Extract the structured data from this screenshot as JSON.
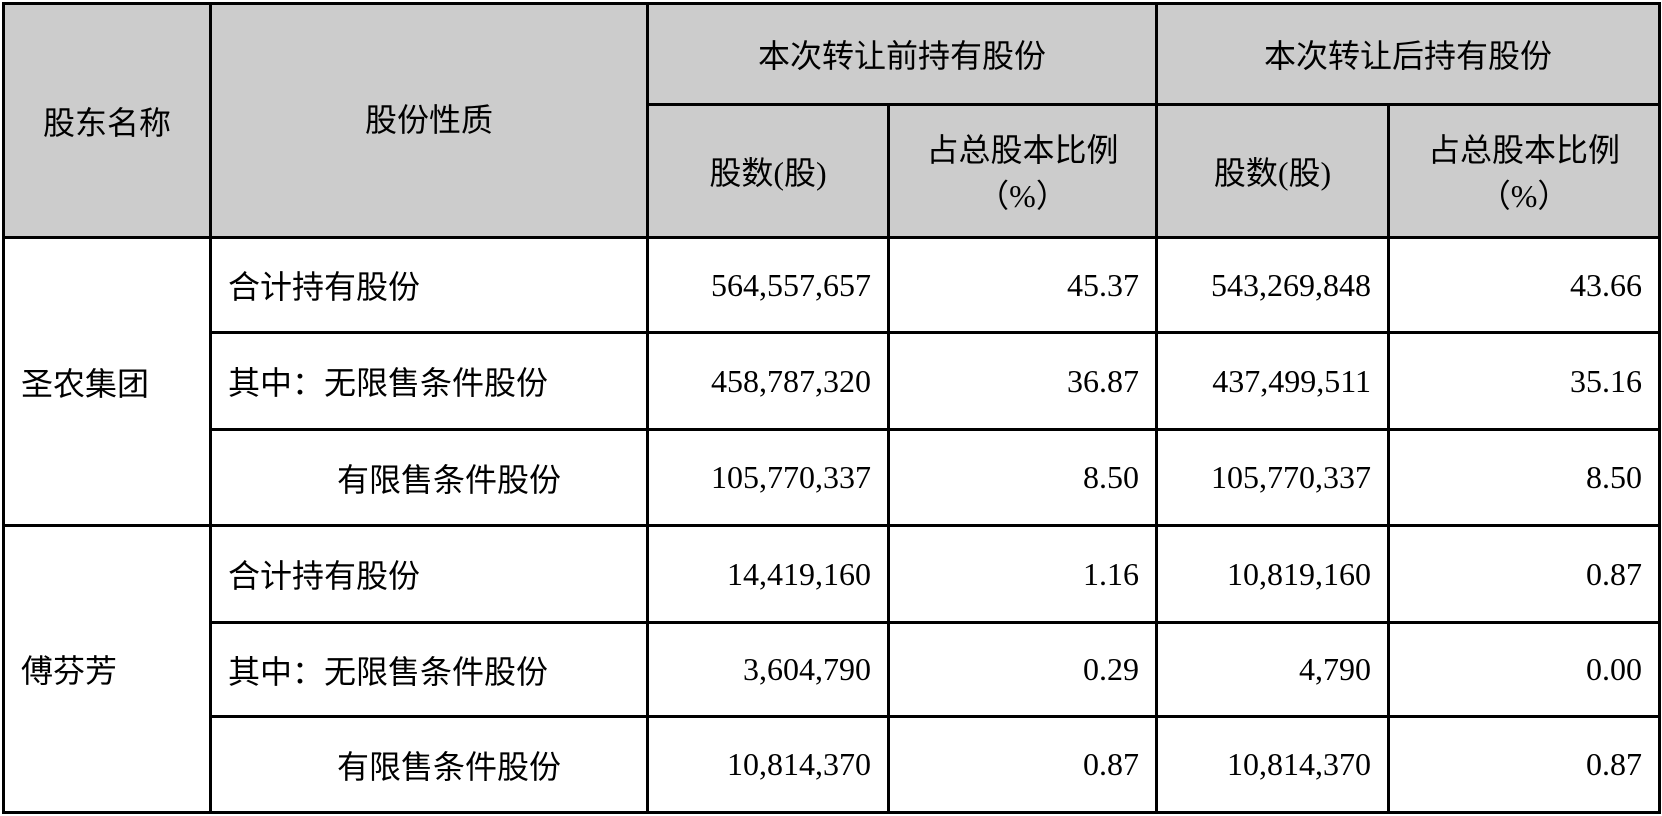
{
  "header": {
    "shareholder": "股东名称",
    "nature": "股份性质",
    "before": "本次转让前持有股份",
    "after": "本次转让后持有股份",
    "shares": "股数(股)",
    "ratio_line1": "占总股本比例",
    "ratio_line2": "（%）"
  },
  "groups": [
    {
      "name": "圣农集团",
      "rows": [
        {
          "nature": "合计持有股份",
          "before_shares": "564,557,657",
          "before_pct": "45.37",
          "after_shares": "543,269,848",
          "after_pct": "43.66"
        },
        {
          "nature": "其中：无限售条件股份",
          "before_shares": "458,787,320",
          "before_pct": "36.87",
          "after_shares": "437,499,511",
          "after_pct": "35.16"
        },
        {
          "nature": "有限售条件股份",
          "before_shares": "105,770,337",
          "before_pct": "8.50",
          "after_shares": "105,770,337",
          "after_pct": "8.50"
        }
      ]
    },
    {
      "name": "傅芬芳",
      "rows": [
        {
          "nature": "合计持有股份",
          "before_shares": "14,419,160",
          "before_pct": "1.16",
          "after_shares": "10,819,160",
          "after_pct": "0.87"
        },
        {
          "nature": "其中：无限售条件股份",
          "before_shares": "3,604,790",
          "before_pct": "0.29",
          "after_shares": "4,790",
          "after_pct": "0.00"
        },
        {
          "nature": "有限售条件股份",
          "before_shares": "10,814,370",
          "before_pct": "0.87",
          "after_shares": "10,814,370",
          "after_pct": "0.87"
        }
      ]
    }
  ],
  "colors": {
    "header_bg": "#cccccc",
    "border": "#000000"
  }
}
